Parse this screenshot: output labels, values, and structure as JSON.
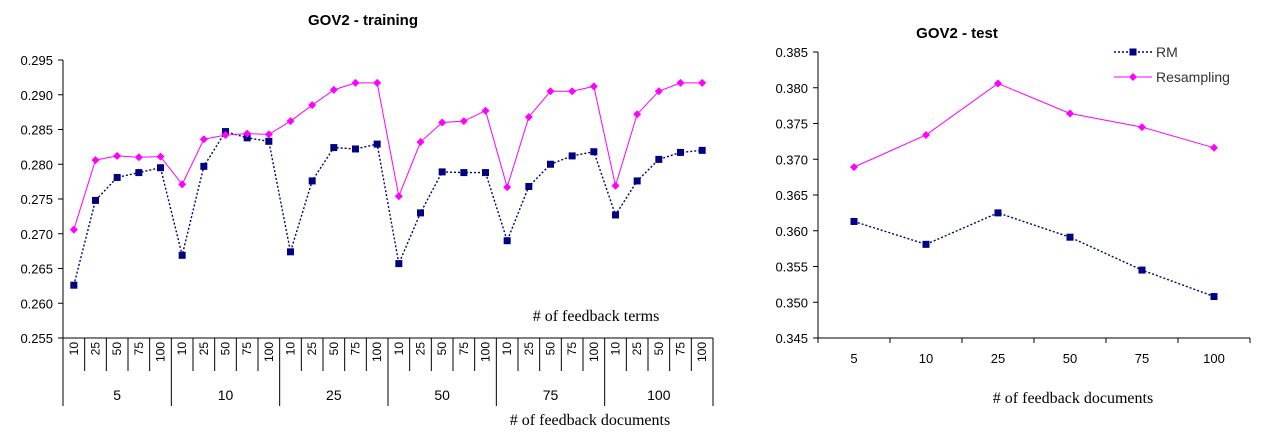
{
  "chart_data": [
    {
      "type": "line",
      "title": "GOV2 - training",
      "xlabel": "# of feedback documents",
      "annotation": "# of feedback terms",
      "ylim": [
        0.255,
        0.295
      ],
      "yticks": [
        "0.255",
        "0.260",
        "0.265",
        "0.270",
        "0.275",
        "0.280",
        "0.285",
        "0.290",
        "0.295"
      ],
      "groups": [
        "5",
        "10",
        "25",
        "50",
        "75",
        "100"
      ],
      "sublabels": [
        "10",
        "25",
        "50",
        "75",
        "100"
      ],
      "series": [
        {
          "name": "RM",
          "color": "#000080",
          "dashed": true,
          "marker": "square",
          "values": [
            0.2626,
            0.2748,
            0.2781,
            0.2788,
            0.2795,
            0.2669,
            0.2797,
            0.2847,
            0.2838,
            0.2833,
            0.2674,
            0.2776,
            0.2824,
            0.2822,
            0.2829,
            0.2657,
            0.273,
            0.2789,
            0.2788,
            0.2788,
            0.269,
            0.2768,
            0.28,
            0.2812,
            0.2818,
            0.2727,
            0.2776,
            0.2807,
            0.2817,
            0.282
          ]
        },
        {
          "name": "Resampling",
          "color": "#ff00ff",
          "dashed": false,
          "marker": "diamond",
          "values": [
            0.2706,
            0.2806,
            0.2812,
            0.281,
            0.2811,
            0.2771,
            0.2836,
            0.2842,
            0.2844,
            0.2843,
            0.2862,
            0.2885,
            0.2907,
            0.2917,
            0.2917,
            0.2754,
            0.2832,
            0.286,
            0.2862,
            0.2877,
            0.2767,
            0.2868,
            0.2905,
            0.2905,
            0.2912,
            0.2769,
            0.2872,
            0.2905,
            0.2917,
            0.2917
          ]
        }
      ]
    },
    {
      "type": "line",
      "title": "GOV2 - test",
      "xlabel": "# of feedback documents",
      "ylim": [
        0.345,
        0.385
      ],
      "yticks": [
        "0.345",
        "0.350",
        "0.355",
        "0.360",
        "0.365",
        "0.370",
        "0.375",
        "0.380",
        "0.385"
      ],
      "categories": [
        "5",
        "10",
        "25",
        "50",
        "75",
        "100"
      ],
      "legend": "top-right",
      "series": [
        {
          "name": "RM",
          "color": "#000080",
          "dashed": true,
          "marker": "square",
          "values": [
            0.3613,
            0.3581,
            0.3625,
            0.3591,
            0.3545,
            0.3508
          ]
        },
        {
          "name": "Resampling",
          "color": "#ff00ff",
          "dashed": false,
          "marker": "diamond",
          "values": [
            0.3689,
            0.3734,
            0.3806,
            0.3764,
            0.3745,
            0.3716
          ]
        }
      ]
    }
  ]
}
